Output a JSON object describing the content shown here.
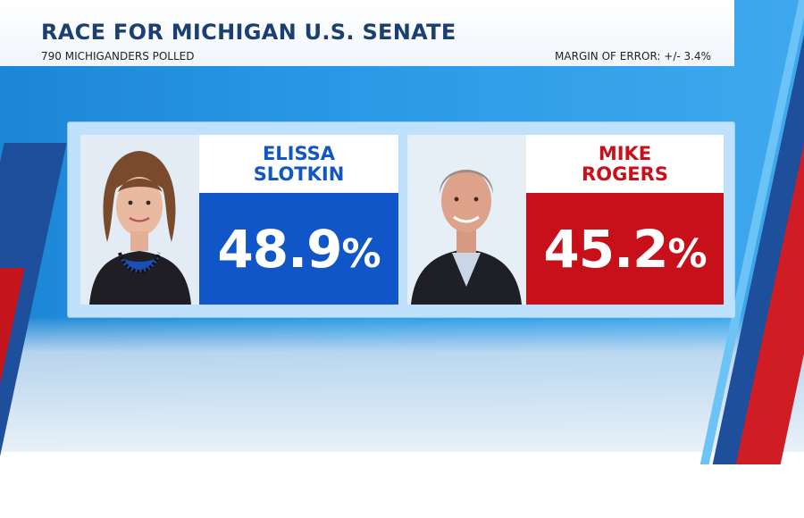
{
  "header": {
    "title": "RACE FOR MICHIGAN U.S. SENATE",
    "sample": "790 MICHIGANDERS POLLED",
    "margin": "MARGIN OF ERROR: +/- 3.4%"
  },
  "candidates": [
    {
      "name": "ELISSA\nSLOTKIN",
      "percent": "48.9",
      "sign": "%",
      "color": "#1056c8"
    },
    {
      "name": "MIKE\nROGERS",
      "percent": "45.2",
      "sign": "%",
      "color": "#c8101a"
    }
  ]
}
